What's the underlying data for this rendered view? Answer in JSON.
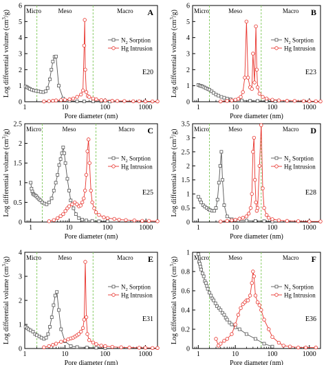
{
  "colors": {
    "n2": "#555555",
    "hg": "#e8322b",
    "bound": "#88cc66",
    "axis": "#000000"
  },
  "text": {
    "ylabel_main": "Log differential volume (cm",
    "ylabel_sup": "3",
    "ylabel_end": "/g)",
    "n2_prefix": "N",
    "n2_sub": "2",
    "n2_suffix": " Sorption",
    "hg_label": "Hg Intrusion",
    "micro": "Micro",
    "meso": "Meso",
    "macro": "Macro"
  },
  "chart_data": [
    {
      "type": "line",
      "panel": "A",
      "sample": "E20",
      "xlabel": "Pore diameter (nm)",
      "xscale": "log",
      "xlim": [
        1,
        2000
      ],
      "ylim": [
        0,
        6
      ],
      "yticks": [
        0,
        1,
        2,
        3,
        4,
        5,
        6
      ],
      "micro_meso": 2,
      "meso_macro": 50,
      "xticks": [
        {
          "v": 1,
          "l": "1"
        },
        {
          "v": 10,
          "l": "10"
        },
        {
          "v": 100,
          "l": "100"
        },
        {
          "v": 1000,
          "l": "1000"
        }
      ],
      "series": [
        {
          "name": "N2 Sorption",
          "x": [
            1.05,
            1.15,
            1.25,
            1.35,
            1.5,
            1.7,
            1.9,
            2.2,
            2.5,
            2.9,
            3.3,
            3.7,
            4.2,
            4.6,
            5.0,
            5.5,
            6.0,
            7.0,
            9.0,
            13,
            20,
            30,
            50,
            80,
            130
          ],
          "y": [
            0.95,
            0.9,
            0.85,
            0.8,
            0.75,
            0.7,
            0.68,
            0.65,
            0.62,
            0.6,
            0.65,
            0.85,
            1.4,
            2.0,
            2.5,
            2.8,
            2.82,
            1.0,
            0.2,
            0.05,
            0.03,
            0.02,
            0.02,
            0.02,
            0.01
          ]
        },
        {
          "name": "Hg Intrusion",
          "x": [
            3,
            4,
            5,
            6,
            8,
            10,
            13,
            16,
            20,
            25,
            28,
            30,
            31,
            32,
            34,
            37,
            40,
            50,
            60,
            80,
            100,
            150,
            200,
            300,
            500,
            700,
            1000,
            1500,
            2000
          ],
          "y": [
            0.02,
            0.04,
            0.06,
            0.08,
            0.1,
            0.12,
            0.15,
            0.2,
            0.3,
            0.45,
            0.7,
            3.5,
            5.1,
            2.0,
            0.6,
            0.35,
            0.3,
            0.2,
            0.15,
            0.1,
            0.08,
            0.06,
            0.05,
            0.04,
            0.03,
            0.03,
            0.02,
            0.02,
            0.02
          ]
        }
      ]
    },
    {
      "type": "line",
      "panel": "B",
      "sample": "E23",
      "xlabel": "Pore diameter (nm)",
      "xscale": "log",
      "xlim": [
        0.7,
        2000
      ],
      "ylim": [
        0,
        6
      ],
      "yticks": [
        0,
        1,
        2,
        3,
        4,
        5,
        6
      ],
      "micro_meso": 2,
      "meso_macro": 50,
      "xticks": [
        {
          "v": 1,
          "l": "1"
        },
        {
          "v": 10,
          "l": "10"
        },
        {
          "v": 100,
          "l": "100"
        },
        {
          "v": 1000,
          "l": "1000"
        }
      ],
      "series": [
        {
          "name": "N2 Sorption",
          "x": [
            1.0,
            1.1,
            1.2,
            1.3,
            1.45,
            1.6,
            1.8,
            2.0,
            2.3,
            2.6,
            3.0,
            3.5,
            4.2,
            5.0,
            6.0,
            7.5,
            10,
            15,
            25,
            40,
            70,
            120
          ],
          "y": [
            1.05,
            1.0,
            0.98,
            0.95,
            0.9,
            0.85,
            0.8,
            0.75,
            0.65,
            0.55,
            0.45,
            0.38,
            0.3,
            0.25,
            0.2,
            0.15,
            0.1,
            0.08,
            0.06,
            0.05,
            0.04,
            0.03
          ]
        },
        {
          "name": "Hg Intrusion",
          "x": [
            4,
            6,
            8,
            10,
            12,
            14,
            16,
            18,
            20,
            22,
            25,
            28,
            30,
            33,
            36,
            38,
            40,
            45,
            55,
            70,
            100,
            150,
            250,
            400,
            700,
            1000,
            1500,
            2000
          ],
          "y": [
            0.02,
            0.05,
            0.08,
            0.12,
            0.18,
            0.3,
            0.6,
            1.5,
            5.0,
            1.5,
            0.9,
            0.8,
            3.0,
            1.2,
            4.7,
            2.0,
            0.9,
            0.5,
            0.3,
            0.2,
            0.12,
            0.08,
            0.06,
            0.05,
            0.04,
            0.03,
            0.03,
            0.02
          ]
        }
      ]
    },
    {
      "type": "line",
      "panel": "C",
      "sample": "E25",
      "xlabel": "Pore diameter (nm)",
      "xscale": "log",
      "xlim": [
        0.7,
        2000
      ],
      "ylim": [
        0,
        2.5
      ],
      "yticks": [
        0,
        0.5,
        1,
        1.5,
        2,
        2.5
      ],
      "micro_meso": 2,
      "meso_macro": 50,
      "xticks": [
        {
          "v": 1,
          "l": "1"
        },
        {
          "v": 10,
          "l": "10"
        },
        {
          "v": 100,
          "l": "100"
        },
        {
          "v": 1000,
          "l": "1000"
        }
      ],
      "series": [
        {
          "name": "N2 Sorption",
          "x": [
            1.0,
            1.05,
            1.1,
            1.15,
            1.2,
            1.3,
            1.4,
            1.5,
            1.65,
            1.8,
            2.0,
            2.3,
            2.6,
            3.0,
            3.5,
            4.0,
            4.5,
            5.0,
            5.5,
            6.0,
            6.5,
            7.0,
            7.5,
            8.0,
            9.0,
            10,
            11,
            13,
            15,
            18,
            22,
            28,
            40,
            60,
            100
          ],
          "y": [
            1.0,
            0.85,
            0.78,
            0.72,
            0.7,
            0.68,
            0.66,
            0.62,
            0.58,
            0.55,
            0.5,
            0.47,
            0.45,
            0.5,
            0.6,
            0.8,
            1.0,
            1.2,
            1.45,
            1.6,
            1.75,
            1.9,
            1.75,
            1.5,
            1.1,
            0.8,
            0.55,
            0.35,
            0.2,
            0.1,
            0.06,
            0.04,
            0.03,
            0.02,
            0.02
          ]
        },
        {
          "name": "Hg Intrusion",
          "x": [
            3,
            4,
            5,
            6,
            7,
            8,
            9,
            10,
            12,
            14,
            16,
            18,
            20,
            22,
            24,
            26,
            28,
            30,
            32,
            34,
            37,
            40,
            45,
            50,
            60,
            80,
            100,
            150,
            200,
            300,
            500,
            800,
            1200,
            2000
          ],
          "y": [
            0.02,
            0.05,
            0.1,
            0.15,
            0.2,
            0.28,
            0.35,
            0.4,
            0.45,
            0.5,
            0.45,
            0.4,
            0.42,
            0.5,
            0.6,
            0.8,
            1.2,
            1.8,
            2.1,
            1.5,
            0.8,
            0.5,
            0.35,
            0.25,
            0.18,
            0.12,
            0.1,
            0.08,
            0.06,
            0.05,
            0.04,
            0.03,
            0.03,
            0.02
          ]
        }
      ]
    },
    {
      "type": "line",
      "panel": "D",
      "sample": "E28",
      "xlabel": "Pore diameter (nm)",
      "xscale": "log",
      "xlim": [
        0.7,
        2000
      ],
      "ylim": [
        0,
        3.5
      ],
      "yticks": [
        0,
        0.5,
        1,
        1.5,
        2,
        2.5,
        3,
        3.5
      ],
      "micro_meso": 2,
      "meso_macro": 50,
      "xticks": [
        {
          "v": 1,
          "l": "1"
        },
        {
          "v": 10,
          "l": "10"
        },
        {
          "v": 100,
          "l": "100"
        },
        {
          "v": 1000,
          "l": "1000"
        }
      ],
      "series": [
        {
          "name": "N2 Sorption",
          "x": [
            1.0,
            1.1,
            1.2,
            1.35,
            1.5,
            1.7,
            1.9,
            2.1,
            2.4,
            2.7,
            3.0,
            3.3,
            3.6,
            3.9,
            4.2,
            4.5,
            5.0,
            6.0,
            8.0,
            12,
            20,
            35,
            60,
            100
          ],
          "y": [
            0.9,
            0.8,
            0.7,
            0.6,
            0.55,
            0.5,
            0.45,
            0.42,
            0.4,
            0.4,
            0.5,
            0.8,
            1.4,
            2.0,
            2.5,
            1.5,
            0.6,
            0.2,
            0.1,
            0.06,
            0.05,
            0.04,
            0.03,
            0.02
          ]
        },
        {
          "name": "Hg Intrusion",
          "x": [
            4,
            6,
            8,
            10,
            13,
            16,
            20,
            23,
            26,
            28,
            30,
            32,
            34,
            36,
            38,
            40,
            45,
            50,
            55,
            60,
            70,
            80,
            100,
            150,
            250,
            500,
            1000,
            2000
          ],
          "y": [
            0.02,
            0.04,
            0.06,
            0.08,
            0.12,
            0.15,
            0.2,
            0.3,
            0.5,
            1.0,
            2.5,
            3.0,
            1.5,
            0.7,
            0.4,
            0.5,
            2.0,
            3.45,
            1.2,
            0.5,
            0.25,
            0.15,
            0.1,
            0.06,
            0.04,
            0.03,
            0.02,
            0.02
          ]
        }
      ]
    },
    {
      "type": "line",
      "panel": "E",
      "sample": "E31",
      "xlabel": "Pore diameter (nm)",
      "xscale": "log",
      "xlim": [
        1,
        2000
      ],
      "ylim": [
        0,
        4
      ],
      "yticks": [
        0,
        1,
        2,
        3,
        4
      ],
      "micro_meso": 2,
      "meso_macro": 50,
      "xticks": [
        {
          "v": 1,
          "l": "1"
        },
        {
          "v": 10,
          "l": "10"
        },
        {
          "v": 100,
          "l": "100"
        },
        {
          "v": 1000,
          "l": "1000"
        }
      ],
      "series": [
        {
          "name": "N2 Sorption",
          "x": [
            1.05,
            1.15,
            1.25,
            1.4,
            1.6,
            1.8,
            2.0,
            2.3,
            2.6,
            3.0,
            3.4,
            3.8,
            4.2,
            4.7,
            5.2,
            5.7,
            6.3,
            7.0,
            8.0,
            10,
            14,
            20,
            35,
            60,
            100
          ],
          "y": [
            0.9,
            0.85,
            0.8,
            0.75,
            0.7,
            0.6,
            0.55,
            0.5,
            0.45,
            0.4,
            0.45,
            0.6,
            0.9,
            1.3,
            1.8,
            2.2,
            2.35,
            1.6,
            0.8,
            0.3,
            0.1,
            0.06,
            0.04,
            0.03,
            0.02
          ]
        },
        {
          "name": "Hg Intrusion",
          "x": [
            3,
            4,
            5,
            6,
            8,
            10,
            12,
            14,
            16,
            18,
            20,
            22,
            25,
            28,
            30,
            32,
            34,
            36,
            40,
            50,
            60,
            80,
            100,
            150,
            250,
            400,
            700,
            1000,
            1500,
            2000
          ],
          "y": [
            0.05,
            0.1,
            0.15,
            0.2,
            0.28,
            0.33,
            0.38,
            0.42,
            0.45,
            0.5,
            0.55,
            0.6,
            0.7,
            0.85,
            1.2,
            3.6,
            1.3,
            0.6,
            0.35,
            0.25,
            0.18,
            0.12,
            0.1,
            0.07,
            0.05,
            0.04,
            0.03,
            0.03,
            0.02,
            0.02
          ]
        }
      ]
    },
    {
      "type": "line",
      "panel": "F",
      "sample": "E36",
      "xlabel": "Pore diameter (nm)",
      "xscale": "log",
      "xlim": [
        0.7,
        2000
      ],
      "ylim": [
        0,
        1.0
      ],
      "yticks": [
        0,
        0.2,
        0.4,
        0.6,
        0.8,
        1.0
      ],
      "micro_meso": 2,
      "meso_macro": 50,
      "xticks": [
        {
          "v": 1,
          "l": "1"
        },
        {
          "v": 10,
          "l": "10"
        },
        {
          "v": 100,
          "l": "100"
        },
        {
          "v": 1000,
          "l": "1000"
        }
      ],
      "series": [
        {
          "name": "N2 Sorption",
          "x": [
            1.0,
            1.05,
            1.1,
            1.15,
            1.2,
            1.3,
            1.4,
            1.5,
            1.6,
            1.7,
            1.8,
            2.0,
            2.2,
            2.4,
            2.6,
            2.9,
            3.2,
            3.6,
            4.0,
            4.5,
            5.0,
            5.5,
            6.0,
            7.0,
            8.0,
            10,
            13,
            20,
            35,
            60,
            100
          ],
          "y": [
            0.98,
            0.9,
            0.88,
            0.85,
            0.82,
            0.78,
            0.75,
            0.7,
            0.68,
            0.65,
            0.62,
            0.58,
            0.55,
            0.52,
            0.5,
            0.47,
            0.44,
            0.42,
            0.4,
            0.37,
            0.35,
            0.32,
            0.3,
            0.27,
            0.25,
            0.22,
            0.2,
            0.15,
            0.1,
            0.05,
            0.02
          ]
        },
        {
          "name": "Hg Intrusion",
          "x": [
            3,
            3.5,
            4,
            5,
            6,
            8,
            10,
            12,
            14,
            16,
            18,
            20,
            22,
            25,
            28,
            30,
            32,
            35,
            40,
            45,
            50,
            60,
            80,
            100,
            150,
            200,
            300,
            500,
            800,
            1500
          ],
          "y": [
            0.1,
            0.03,
            0.05,
            0.08,
            0.1,
            0.15,
            0.25,
            0.35,
            0.42,
            0.46,
            0.48,
            0.5,
            0.5,
            0.55,
            0.68,
            0.8,
            0.75,
            0.55,
            0.48,
            0.45,
            0.4,
            0.3,
            0.2,
            0.12,
            0.06,
            0.03,
            0.02,
            0.01,
            0.01,
            0.01
          ]
        }
      ]
    }
  ]
}
